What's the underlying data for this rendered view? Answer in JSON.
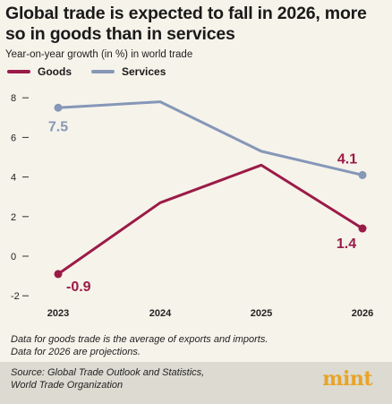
{
  "header": {
    "title": "Global trade is expected to fall in 2026, more so in goods than in services",
    "subtitle": "Year-on-year growth (in %) in world trade"
  },
  "colors": {
    "goods": "#9b1b48",
    "services": "#8697b8"
  },
  "chart_data": {
    "type": "line",
    "x": [
      "2023",
      "2024",
      "2025",
      "2026"
    ],
    "series": [
      {
        "name": "Goods",
        "values": [
          -0.9,
          2.7,
          4.6,
          1.4
        ]
      },
      {
        "name": "Services",
        "values": [
          7.5,
          7.8,
          5.3,
          4.1
        ]
      }
    ],
    "yticks": [
      "8",
      "6",
      "4",
      "2",
      "0",
      "-2"
    ],
    "ylim": [
      -2.5,
      8.5
    ],
    "data_labels": [
      "7.5",
      "-0.9",
      "4.1",
      "1.4"
    ],
    "legend": "top-left",
    "grid": false
  },
  "notes": {
    "line1": "Data for goods trade is the average of exports and imports.",
    "line2": "Data for 2026 are projections."
  },
  "footer": {
    "source_line1": "Source: Global Trade Outlook and Statistics,",
    "source_line2": "World Trade Organization",
    "brand": "mint"
  }
}
